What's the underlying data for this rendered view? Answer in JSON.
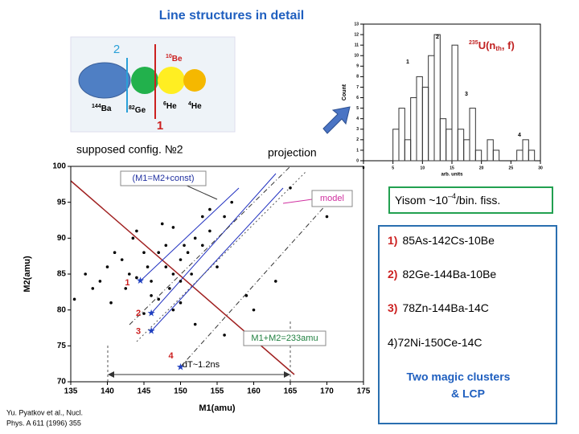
{
  "title": "Line structures in detail",
  "diagram": {
    "line_left": "2",
    "line_right": "1",
    "nuclei": [
      {
        "mass": "144",
        "symbol": "Ba"
      },
      {
        "mass": "82",
        "symbol": "Ge"
      },
      {
        "mass": "6",
        "symbol": "He"
      },
      {
        "mass": "4",
        "symbol": "He"
      },
      {
        "mass": "10",
        "symbol": "Be"
      }
    ]
  },
  "caption_config": "supposed  config. №2",
  "caption_projection": "projection",
  "chart_data": [
    {
      "type": "scatter",
      "x_label": "M1(amu)",
      "y_label": "M2(amu)",
      "xlim": [
        135,
        175
      ],
      "ylim": [
        70,
        100
      ],
      "xticks": [
        135,
        140,
        145,
        150,
        155,
        160,
        165,
        170,
        175
      ],
      "yticks": [
        70,
        75,
        80,
        85,
        90,
        95,
        100
      ],
      "points": {
        "color": "#000000",
        "x": [
          135.5,
          137,
          138,
          139,
          140,
          140.5,
          141,
          142,
          142.5,
          143,
          143.5,
          144,
          144,
          145,
          145.5,
          146,
          146,
          147,
          147.5,
          148,
          148,
          148.5,
          149,
          149,
          150,
          150,
          150.5,
          151,
          151.5,
          152,
          153,
          153,
          154,
          154,
          155,
          156,
          157,
          159,
          160,
          163,
          165,
          170,
          149,
          150,
          147,
          145,
          152,
          156
        ],
        "y": [
          81.5,
          85,
          83,
          84,
          86,
          81,
          88,
          87,
          83,
          85,
          90,
          91,
          84.5,
          88,
          86,
          82,
          84,
          88,
          92,
          89,
          86,
          83,
          85,
          91.5,
          87,
          84,
          89,
          88,
          85,
          90,
          93,
          89,
          91,
          94,
          86,
          93,
          95,
          82,
          80,
          84,
          97,
          93,
          80,
          81,
          81.5,
          79.5,
          78,
          76.5
        ]
      },
      "stars": {
        "color": "#1f3fbf",
        "x": [
          144.5,
          146,
          146,
          150
        ],
        "y": [
          84,
          79.5,
          77,
          72
        ],
        "labels": [
          "1",
          "2",
          "3",
          "4"
        ]
      },
      "annotations": [
        "(M1=M2+const)",
        "model",
        "M1+M2=233amu",
        "dT~1.2ns"
      ]
    },
    {
      "type": "histogram",
      "x_label": "arb. units",
      "y_label": "Count",
      "xlim": [
        0,
        30
      ],
      "ylim": [
        0,
        13
      ],
      "xticks": [
        0,
        5,
        10,
        15,
        20,
        25,
        30
      ],
      "yticks": [
        0,
        1,
        2,
        3,
        4,
        5,
        6,
        7,
        8,
        9,
        10,
        11,
        12,
        13
      ],
      "bins": [
        5,
        6,
        7,
        8,
        9,
        10,
        11,
        12,
        13,
        14,
        15,
        16,
        17,
        18,
        19,
        20,
        21,
        22,
        23,
        24,
        25,
        26,
        27,
        28,
        29
      ],
      "counts": [
        3,
        5,
        2,
        6,
        8,
        7,
        10,
        12,
        4,
        3,
        11,
        3,
        2,
        5,
        1,
        0,
        2,
        1,
        0,
        0,
        0,
        1,
        2,
        1
      ],
      "color": "#333333",
      "peak_labels": [
        "1",
        "2",
        "3",
        "4"
      ],
      "reaction": {
        "mass": "235",
        "symbol": "U(n",
        "sub": "th",
        "rest": ", f)"
      }
    }
  ],
  "yield_note": {
    "prefix": "Yisom ~10",
    "exp": "–4",
    "suffix": "/bin. fiss."
  },
  "list": {
    "items": [
      {
        "number": "1)",
        "text": "85As-142Cs-10Be"
      },
      {
        "number": "2)",
        "text": "82Ge-144Ba-10Be"
      },
      {
        "number": "3)",
        "text": "78Zn-144Ba-14C"
      },
      {
        "number": "4)",
        "text": "72Ni-150Ce-14C"
      }
    ],
    "conclusion": [
      "Two magic clusters",
      "& LCP"
    ]
  },
  "reference": [
    "Yu. Pyatkov et al.,  Nucl.",
    "Phys. A 611 (1996) 355"
  ]
}
